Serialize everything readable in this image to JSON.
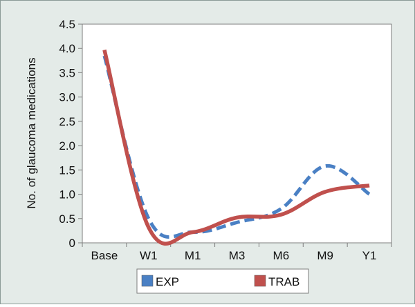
{
  "chart_data": {
    "type": "line",
    "title": "",
    "xlabel": "",
    "ylabel": "No. of glaucoma medications",
    "categories": [
      "Base",
      "W1",
      "M1",
      "M3",
      "M6",
      "M9",
      "Y1"
    ],
    "ylim": [
      0,
      4.5
    ],
    "yticks": [
      "0",
      "0.5",
      "1.0",
      "1.5",
      "2.0",
      "2.5",
      "3.0",
      "3.5",
      "4.0",
      "4.5"
    ],
    "grid": false,
    "legend_position": "bottom",
    "series": [
      {
        "name": "EXP",
        "color": "#4a80c4",
        "style": "dashed",
        "values": [
          3.85,
          0.5,
          0.22,
          0.42,
          0.7,
          1.58,
          1.0
        ]
      },
      {
        "name": "TRAB",
        "color": "#c0504d",
        "style": "solid",
        "values": [
          3.97,
          0.32,
          0.22,
          0.52,
          0.58,
          1.05,
          1.18
        ]
      }
    ]
  }
}
